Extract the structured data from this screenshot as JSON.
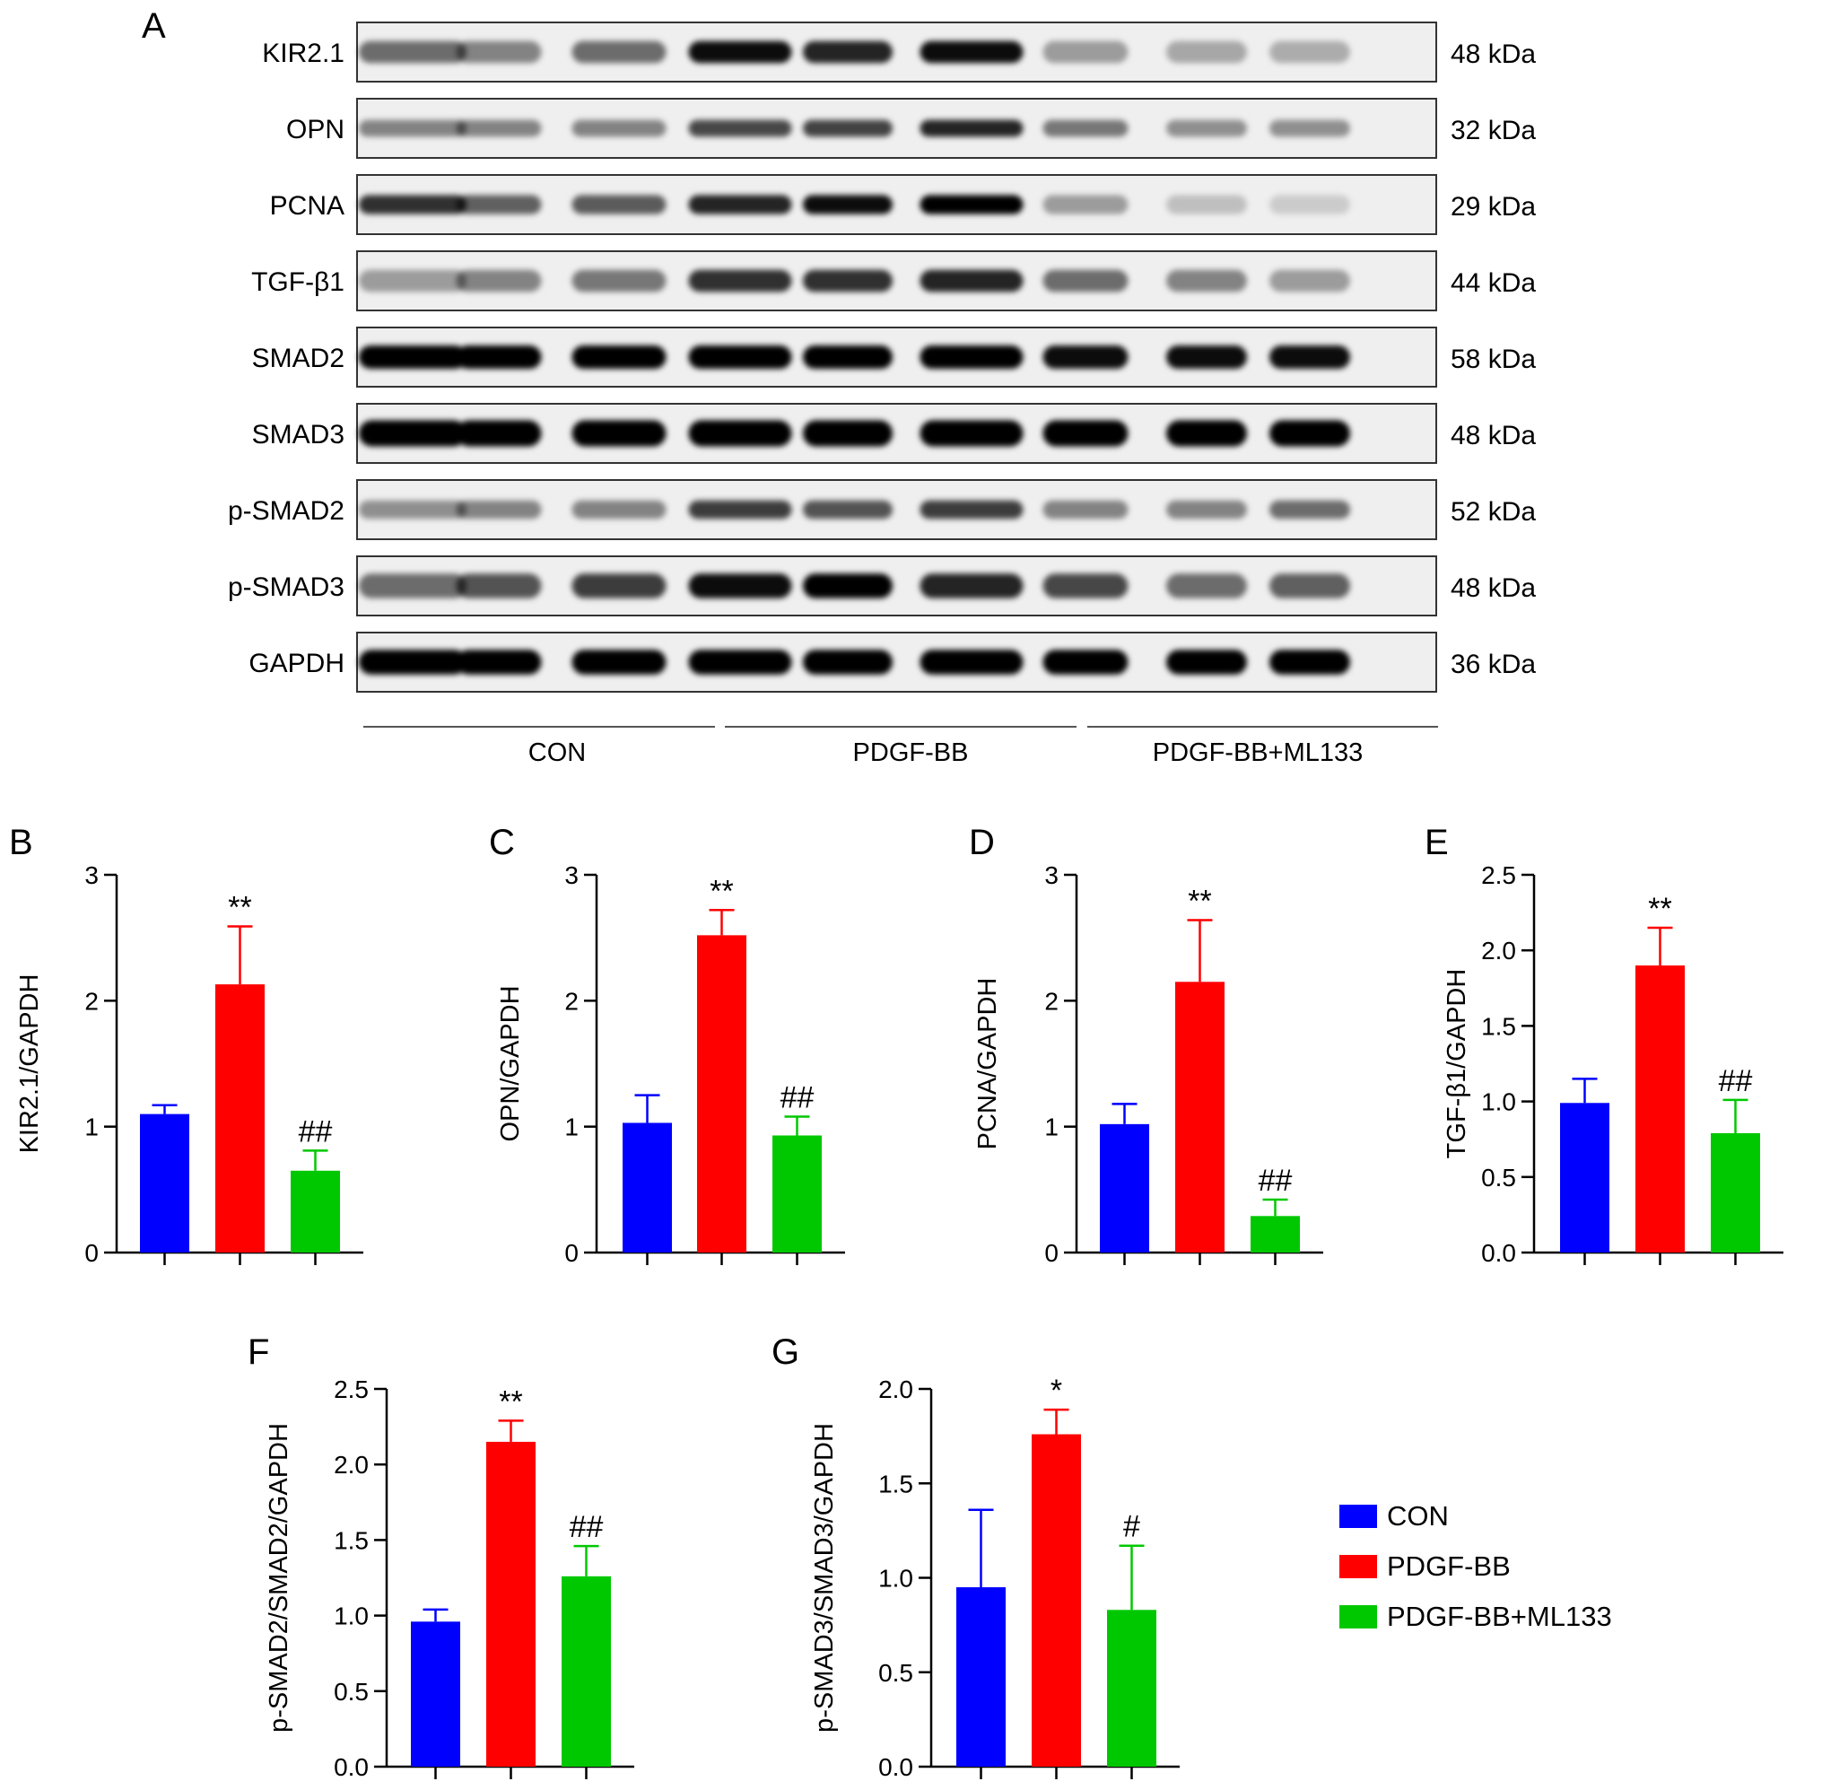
{
  "panel_a": {
    "letter": "A",
    "proteins": [
      {
        "name": "KIR2.1",
        "kda": "48 kDa",
        "intensity": [
          0.55,
          0.45,
          0.55,
          0.95,
          0.85,
          0.95,
          0.35,
          0.3,
          0.28
        ],
        "thickness": 0.9
      },
      {
        "name": "OPN",
        "kda": "32 kDa",
        "intensity": [
          0.45,
          0.45,
          0.45,
          0.7,
          0.72,
          0.85,
          0.5,
          0.4,
          0.4
        ],
        "thickness": 0.55
      },
      {
        "name": "PCNA",
        "kda": "29 kDa",
        "intensity": [
          0.8,
          0.6,
          0.62,
          0.85,
          0.95,
          1.0,
          0.35,
          0.2,
          0.15
        ],
        "thickness": 0.7
      },
      {
        "name": "TGF-β1",
        "kda": "44 kDa",
        "intensity": [
          0.35,
          0.45,
          0.5,
          0.8,
          0.8,
          0.85,
          0.55,
          0.45,
          0.35
        ],
        "thickness": 0.9
      },
      {
        "name": "SMAD2",
        "kda": "58 kDa",
        "intensity": [
          1.0,
          1.0,
          1.0,
          1.0,
          1.0,
          1.0,
          0.95,
          0.95,
          0.95
        ],
        "thickness": 1.0
      },
      {
        "name": "SMAD3",
        "kda": "48 kDa",
        "intensity": [
          1.0,
          1.0,
          1.0,
          1.0,
          1.0,
          1.0,
          1.0,
          1.0,
          1.0
        ],
        "thickness": 1.2
      },
      {
        "name": "p-SMAD2",
        "kda": "52 kDa",
        "intensity": [
          0.4,
          0.45,
          0.45,
          0.75,
          0.65,
          0.75,
          0.45,
          0.45,
          0.55
        ],
        "thickness": 0.65
      },
      {
        "name": "p-SMAD3",
        "kda": "48 kDa",
        "intensity": [
          0.55,
          0.65,
          0.75,
          0.95,
          1.0,
          0.85,
          0.7,
          0.55,
          0.6
        ],
        "thickness": 1.1
      },
      {
        "name": "GAPDH",
        "kda": "36 kDa",
        "intensity": [
          1.0,
          1.0,
          1.0,
          1.0,
          1.0,
          1.0,
          1.0,
          1.0,
          1.0
        ],
        "thickness": 1.1
      }
    ],
    "groups": [
      "CON",
      "PDGF-BB",
      "PDGF-BB+ML133"
    ]
  },
  "legend": [
    {
      "label": "CON",
      "color": "#0000ff"
    },
    {
      "label": "PDGF-BB",
      "color": "#ff0000"
    },
    {
      "label": "PDGF-BB+ML133",
      "color": "#00c800"
    }
  ],
  "chart_data": [
    {
      "panel": "B",
      "type": "bar",
      "ylabel": "KIR2.1/GAPDH",
      "ylim": [
        0,
        3
      ],
      "yticks": [
        "0",
        "1",
        "2",
        "3"
      ],
      "categories": [
        "CON",
        "PDGF-BB",
        "PDGF-BB+ML133"
      ],
      "values": [
        1.1,
        2.13,
        0.65
      ],
      "errors": [
        0.07,
        0.46,
        0.16
      ],
      "annotations": [
        "",
        "**",
        "##"
      ]
    },
    {
      "panel": "C",
      "type": "bar",
      "ylabel": "OPN/GAPDH",
      "ylim": [
        0,
        3
      ],
      "yticks": [
        "0",
        "1",
        "2",
        "3"
      ],
      "categories": [
        "CON",
        "PDGF-BB",
        "PDGF-BB+ML133"
      ],
      "values": [
        1.03,
        2.52,
        0.93
      ],
      "errors": [
        0.22,
        0.2,
        0.15
      ],
      "annotations": [
        "",
        "**",
        "##"
      ]
    },
    {
      "panel": "D",
      "type": "bar",
      "ylabel": "PCNA/GAPDH",
      "ylim": [
        0,
        3
      ],
      "yticks": [
        "0",
        "1",
        "2",
        "3"
      ],
      "categories": [
        "CON",
        "PDGF-BB",
        "PDGF-BB+ML133"
      ],
      "values": [
        1.02,
        2.15,
        0.29
      ],
      "errors": [
        0.16,
        0.49,
        0.13
      ],
      "annotations": [
        "",
        "**",
        "##"
      ]
    },
    {
      "panel": "E",
      "type": "bar",
      "ylabel": "TGF-β1/GAPDH",
      "ylim": [
        0,
        2.5
      ],
      "yticks": [
        "0.0",
        "0.5",
        "1.0",
        "1.5",
        "2.0",
        "2.5"
      ],
      "categories": [
        "CON",
        "PDGF-BB",
        "PDGF-BB+ML133"
      ],
      "values": [
        0.99,
        1.9,
        0.79
      ],
      "errors": [
        0.16,
        0.25,
        0.22
      ],
      "annotations": [
        "",
        "**",
        "##"
      ]
    },
    {
      "panel": "F",
      "type": "bar",
      "ylabel": "p-SMAD2/SMAD2/GAPDH",
      "ylim": [
        0,
        2.5
      ],
      "yticks": [
        "0.0",
        "0.5",
        "1.0",
        "1.5",
        "2.0",
        "2.5"
      ],
      "categories": [
        "CON",
        "PDGF-BB",
        "PDGF-BB+ML133"
      ],
      "values": [
        0.96,
        2.15,
        1.26
      ],
      "errors": [
        0.08,
        0.14,
        0.2
      ],
      "annotations": [
        "",
        "**",
        "##"
      ]
    },
    {
      "panel": "G",
      "type": "bar",
      "ylabel": "p-SMAD3/SMAD3/GAPDH",
      "ylim": [
        0,
        2.0
      ],
      "yticks": [
        "0.0",
        "0.5",
        "1.0",
        "1.5",
        "2.0"
      ],
      "categories": [
        "CON",
        "PDGF-BB",
        "PDGF-BB+ML133"
      ],
      "values": [
        0.95,
        1.76,
        0.83
      ],
      "errors": [
        0.41,
        0.13,
        0.34
      ],
      "annotations": [
        "",
        "*",
        "#"
      ]
    }
  ]
}
